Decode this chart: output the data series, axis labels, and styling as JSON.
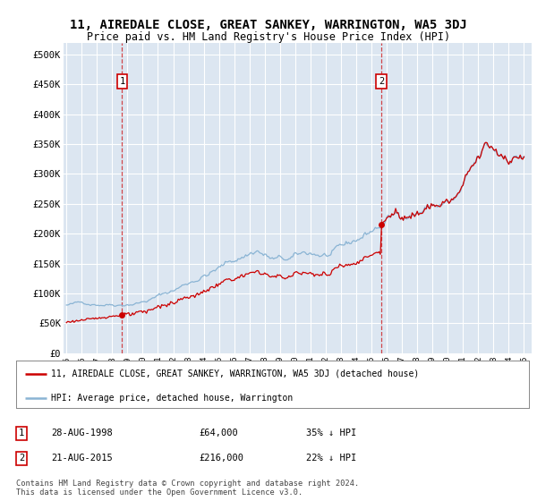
{
  "title": "11, AIREDALE CLOSE, GREAT SANKEY, WARRINGTON, WA5 3DJ",
  "subtitle": "Price paid vs. HM Land Registry's House Price Index (HPI)",
  "ylabel_ticks": [
    "£0",
    "£50K",
    "£100K",
    "£150K",
    "£200K",
    "£250K",
    "£300K",
    "£350K",
    "£400K",
    "£450K",
    "£500K"
  ],
  "ytick_values": [
    0,
    50000,
    100000,
    150000,
    200000,
    250000,
    300000,
    350000,
    400000,
    450000,
    500000
  ],
  "ylim": [
    0,
    520000
  ],
  "sale1_date": "28-AUG-1998",
  "sale1_price": 64000,
  "sale1_hpi_pct": "35% ↓ HPI",
  "sale2_date": "21-AUG-2015",
  "sale2_price": 216000,
  "sale2_hpi_pct": "22% ↓ HPI",
  "legend_label1": "11, AIREDALE CLOSE, GREAT SANKEY, WARRINGTON, WA5 3DJ (detached house)",
  "legend_label2": "HPI: Average price, detached house, Warrington",
  "footer": "Contains HM Land Registry data © Crown copyright and database right 2024.\nThis data is licensed under the Open Government Licence v3.0.",
  "background_color": "#dce6f1",
  "grid_color": "#ffffff",
  "line_color_hpi": "#8ab4d4",
  "line_color_sale": "#cc0000",
  "vline_color": "#cc0000",
  "sale1_x": 1998.65,
  "sale2_x": 2015.65,
  "xlim_left": 1994.8,
  "xlim_right": 2025.5
}
